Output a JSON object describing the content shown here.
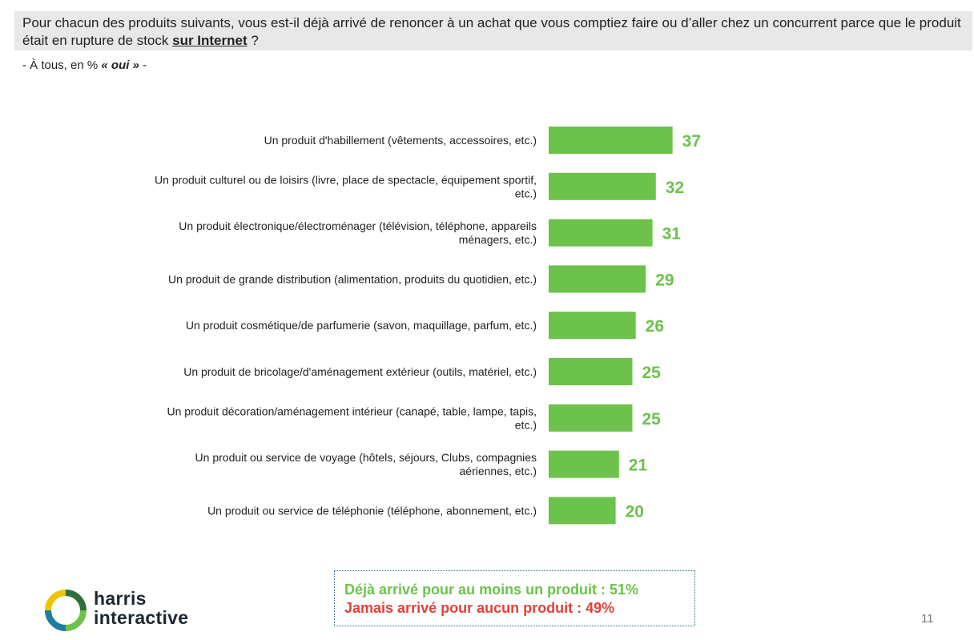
{
  "question": {
    "text_before": "Pour chacun des produits suivants, vous est-il déjà arrivé de renoncer à un achat que vous comptiez faire ou d’aller chez un concurrent parce que le produit était en rupture de stock ",
    "emphasis": "sur Internet",
    "text_after": " ?"
  },
  "subtitle": {
    "prefix": "- À tous, en % ",
    "emphasis": "« oui »",
    "suffix": " -"
  },
  "chart_data": {
    "type": "bar",
    "orientation": "horizontal",
    "categories": [
      [
        "Un produit d'habillement (vêtements, accessoires, etc.)"
      ],
      [
        "Un produit culturel ou de loisirs (livre, place de spectacle, équipement sportif,",
        "etc.)"
      ],
      [
        "Un produit électronique/électroménager (télévision, téléphone, appareils",
        "ménagers, etc.)"
      ],
      [
        "Un produit de grande distribution (alimentation, produits du quotidien, etc.)"
      ],
      [
        "Un produit cosmétique/de parfumerie (savon, maquillage, parfum, etc.)"
      ],
      [
        "Un produit de bricolage/d'aménagement extérieur (outils, matériel, etc.)"
      ],
      [
        "Un produit décoration/aménagement intérieur (canapé, table, lampe, tapis,",
        "etc.)"
      ],
      [
        "Un produit ou service de voyage (hôtels, séjours, Clubs, compagnies",
        "aériennes, etc.)"
      ],
      [
        "Un produit ou service de téléphonie (téléphone, abonnement, etc.)"
      ]
    ],
    "values": [
      37,
      32,
      31,
      29,
      26,
      25,
      25,
      21,
      20
    ],
    "unit": "%",
    "bar_color": "#6cc24a",
    "value_label_color": "#6cc24a"
  },
  "summary": {
    "line1": "Déjà arrivé pour au moins un produit : 51%",
    "line2": "Jamais arrivé pour aucun produit : 49%",
    "color1": "#6cc24a",
    "color2": "#e2413b"
  },
  "logo": {
    "line1": "harris",
    "line2": "interactive"
  },
  "page_number": "11"
}
